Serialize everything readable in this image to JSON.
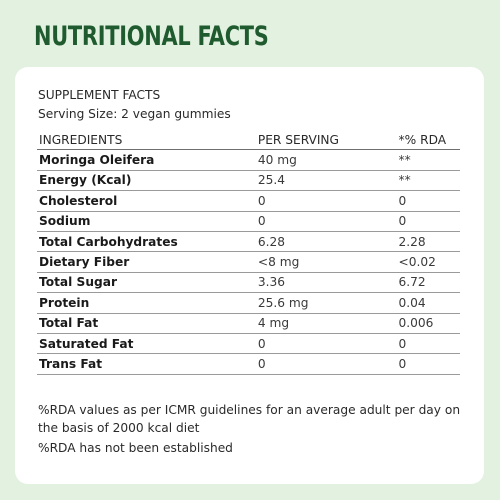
{
  "title": "NUTRITIONAL FACTS",
  "card": {
    "heading": "SUPPLEMENT FACTS",
    "serving": "Serving Size: 2 vegan gummies",
    "columns": [
      "INGREDIENTS",
      "PER SERVING",
      "*% RDA"
    ],
    "rows": [
      {
        "ingredient": "Moringa Oleifera",
        "per_serving": "40 mg",
        "rda": "**"
      },
      {
        "ingredient": "Energy (Kcal)",
        "per_serving": "25.4",
        "rda": "**"
      },
      {
        "ingredient": "Cholesterol",
        "per_serving": "0",
        "rda": "0"
      },
      {
        "ingredient": "Sodium",
        "per_serving": "0",
        "rda": "0"
      },
      {
        "ingredient": "Total Carbohydrates",
        "per_serving": "6.28",
        "rda": "2.28"
      },
      {
        "ingredient": "Dietary Fiber",
        "per_serving": "<8 mg",
        "rda": "<0.02"
      },
      {
        "ingredient": "Total Sugar",
        "per_serving": "3.36",
        "rda": "6.72"
      },
      {
        "ingredient": "Protein",
        "per_serving": "25.6 mg",
        "rda": "0.04"
      },
      {
        "ingredient": "Total Fat",
        "per_serving": "4 mg",
        "rda": "0.006"
      },
      {
        "ingredient": "Saturated Fat",
        "per_serving": "0",
        "rda": "0"
      },
      {
        "ingredient": "Trans Fat",
        "per_serving": "0",
        "rda": "0"
      }
    ],
    "notes": [
      "%RDA values as per ICMR guidelines for an average adult per day on the basis of 2000 kcal diet",
      "%RDA has not been established"
    ]
  },
  "colors": {
    "page_background": "#e2f1e0",
    "title": "#1f5b2e",
    "card_background": "#ffffff"
  }
}
